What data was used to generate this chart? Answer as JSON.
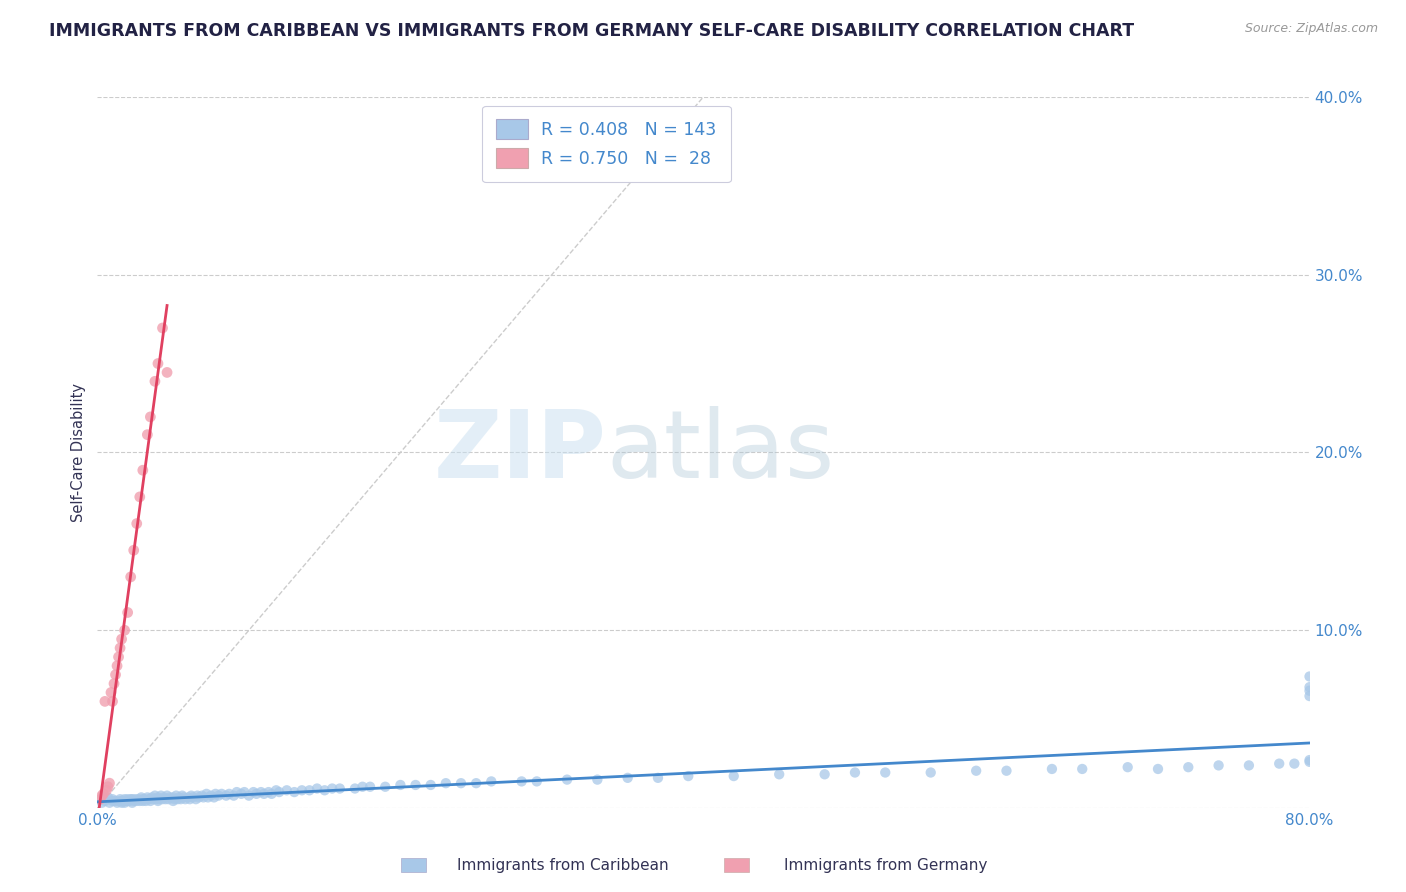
{
  "title": "IMMIGRANTS FROM CARIBBEAN VS IMMIGRANTS FROM GERMANY SELF-CARE DISABILITY CORRELATION CHART",
  "source": "Source: ZipAtlas.com",
  "ylabel": "Self-Care Disability",
  "xlim": [
    0.0,
    0.8
  ],
  "ylim": [
    0.0,
    0.4
  ],
  "watermark_zip": "ZIP",
  "watermark_atlas": "atlas",
  "legend_r1": "R = 0.408",
  "legend_n1": "N = 143",
  "legend_r2": "R = 0.750",
  "legend_n2": "N =  28",
  "scatter_caribbean_color": "#a8c8e8",
  "scatter_germany_color": "#f0a0b0",
  "line_caribbean_color": "#4488cc",
  "line_germany_color": "#e04060",
  "diagonal_color": "#cccccc",
  "background_color": "#ffffff",
  "title_color": "#222244",
  "title_fontsize": 12.5,
  "axis_label_color": "#333355",
  "tick_color": "#4488cc",
  "legend_val_color": "#4488cc",
  "legend_box_color_1": "#a8c8e8",
  "legend_box_color_2": "#f0a0b0",
  "caribbean_x": [
    0.002,
    0.003,
    0.005,
    0.007,
    0.008,
    0.01,
    0.01,
    0.012,
    0.013,
    0.015,
    0.015,
    0.016,
    0.017,
    0.018,
    0.018,
    0.019,
    0.02,
    0.02,
    0.021,
    0.022,
    0.023,
    0.023,
    0.024,
    0.025,
    0.026,
    0.027,
    0.028,
    0.029,
    0.03,
    0.03,
    0.031,
    0.032,
    0.033,
    0.034,
    0.035,
    0.036,
    0.037,
    0.038,
    0.039,
    0.04,
    0.04,
    0.041,
    0.042,
    0.043,
    0.044,
    0.045,
    0.046,
    0.047,
    0.048,
    0.05,
    0.05,
    0.051,
    0.052,
    0.053,
    0.054,
    0.055,
    0.056,
    0.057,
    0.058,
    0.06,
    0.061,
    0.062,
    0.063,
    0.065,
    0.066,
    0.067,
    0.069,
    0.07,
    0.072,
    0.073,
    0.075,
    0.077,
    0.078,
    0.08,
    0.082,
    0.085,
    0.087,
    0.09,
    0.092,
    0.095,
    0.097,
    0.1,
    0.103,
    0.105,
    0.108,
    0.11,
    0.113,
    0.115,
    0.118,
    0.12,
    0.125,
    0.13,
    0.135,
    0.14,
    0.145,
    0.15,
    0.155,
    0.16,
    0.17,
    0.175,
    0.18,
    0.19,
    0.2,
    0.21,
    0.22,
    0.23,
    0.24,
    0.25,
    0.26,
    0.28,
    0.29,
    0.31,
    0.33,
    0.35,
    0.37,
    0.39,
    0.42,
    0.45,
    0.48,
    0.5,
    0.52,
    0.55,
    0.58,
    0.6,
    0.63,
    0.65,
    0.68,
    0.7,
    0.72,
    0.74,
    0.76,
    0.78,
    0.79,
    0.8,
    0.8,
    0.8,
    0.8,
    0.8,
    0.8
  ],
  "caribbean_y": [
    0.005,
    0.003,
    0.004,
    0.006,
    0.003,
    0.004,
    0.005,
    0.004,
    0.003,
    0.005,
    0.004,
    0.003,
    0.004,
    0.005,
    0.003,
    0.004,
    0.004,
    0.005,
    0.004,
    0.005,
    0.003,
    0.005,
    0.004,
    0.005,
    0.004,
    0.005,
    0.004,
    0.006,
    0.005,
    0.004,
    0.005,
    0.004,
    0.006,
    0.005,
    0.004,
    0.006,
    0.005,
    0.007,
    0.005,
    0.004,
    0.006,
    0.005,
    0.007,
    0.005,
    0.006,
    0.005,
    0.007,
    0.005,
    0.006,
    0.004,
    0.006,
    0.005,
    0.007,
    0.005,
    0.006,
    0.005,
    0.007,
    0.006,
    0.005,
    0.006,
    0.005,
    0.007,
    0.006,
    0.005,
    0.007,
    0.006,
    0.007,
    0.006,
    0.008,
    0.006,
    0.007,
    0.006,
    0.008,
    0.007,
    0.008,
    0.007,
    0.008,
    0.007,
    0.009,
    0.008,
    0.009,
    0.007,
    0.009,
    0.008,
    0.009,
    0.008,
    0.009,
    0.008,
    0.01,
    0.009,
    0.01,
    0.009,
    0.01,
    0.01,
    0.011,
    0.01,
    0.011,
    0.011,
    0.011,
    0.012,
    0.012,
    0.012,
    0.013,
    0.013,
    0.013,
    0.014,
    0.014,
    0.014,
    0.015,
    0.015,
    0.015,
    0.016,
    0.016,
    0.017,
    0.017,
    0.018,
    0.018,
    0.019,
    0.019,
    0.02,
    0.02,
    0.02,
    0.021,
    0.021,
    0.022,
    0.022,
    0.023,
    0.022,
    0.023,
    0.024,
    0.024,
    0.025,
    0.025,
    0.026,
    0.027,
    0.074,
    0.068,
    0.066,
    0.063
  ],
  "germany_x": [
    0.002,
    0.003,
    0.004,
    0.005,
    0.006,
    0.007,
    0.008,
    0.009,
    0.01,
    0.011,
    0.012,
    0.013,
    0.014,
    0.015,
    0.016,
    0.018,
    0.02,
    0.022,
    0.024,
    0.026,
    0.028,
    0.03,
    0.033,
    0.035,
    0.038,
    0.04,
    0.043,
    0.046
  ],
  "germany_y": [
    0.005,
    0.007,
    0.008,
    0.06,
    0.01,
    0.012,
    0.014,
    0.065,
    0.06,
    0.07,
    0.075,
    0.08,
    0.085,
    0.09,
    0.095,
    0.1,
    0.11,
    0.13,
    0.145,
    0.16,
    0.175,
    0.19,
    0.21,
    0.22,
    0.24,
    0.25,
    0.27,
    0.245
  ]
}
